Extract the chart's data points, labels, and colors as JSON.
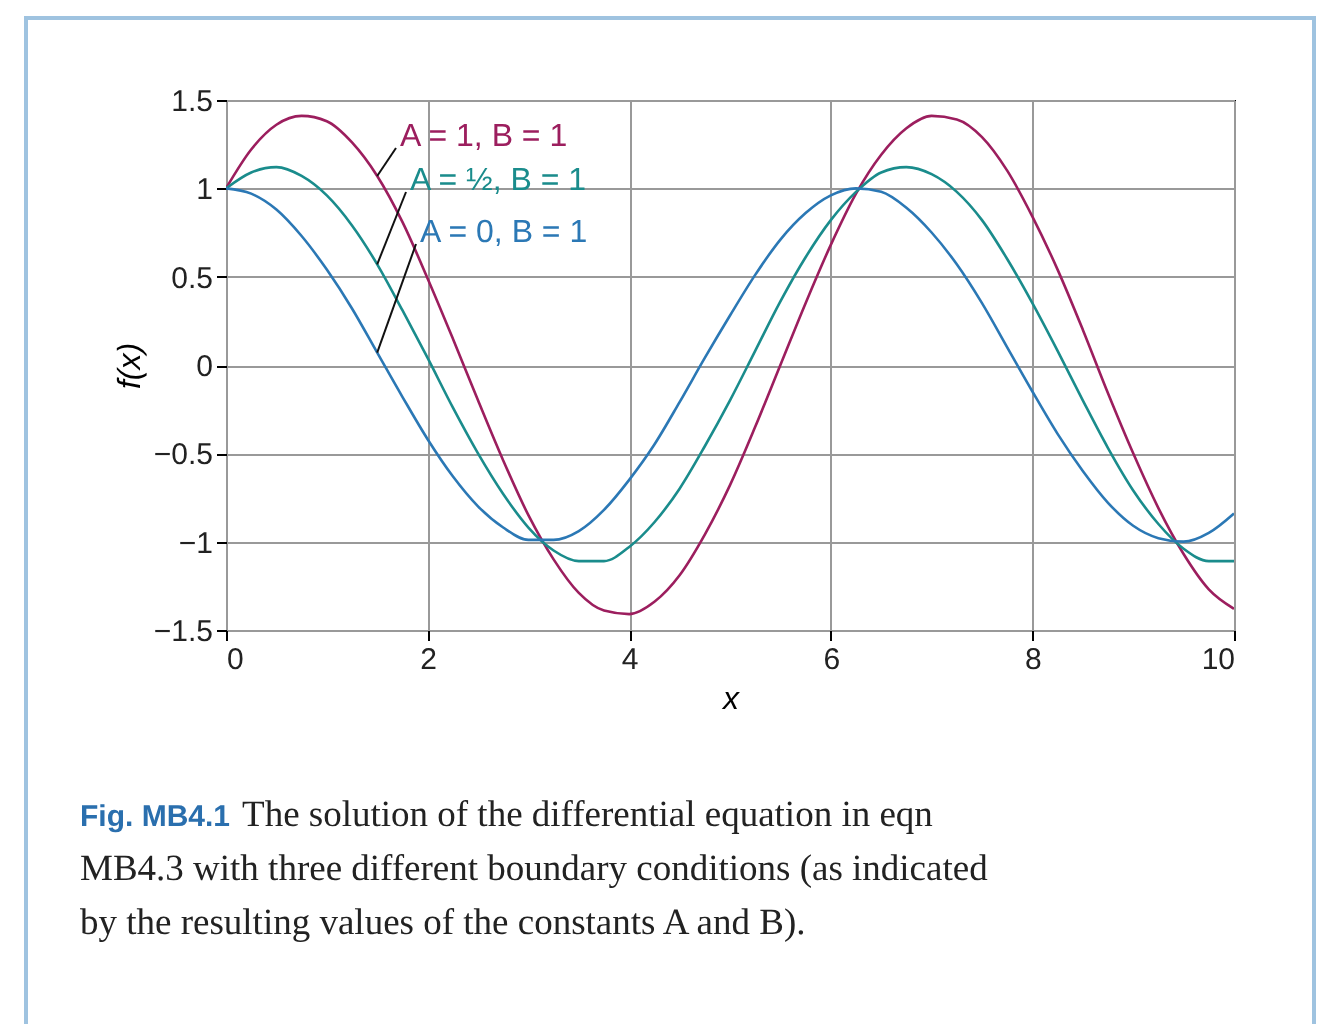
{
  "chart_data": {
    "type": "line",
    "xlabel": "x",
    "ylabel": "f(x)",
    "x": [
      0,
      0.25,
      0.5,
      0.75,
      1,
      1.25,
      1.5,
      1.75,
      2,
      2.25,
      2.5,
      2.75,
      3,
      3.25,
      3.5,
      3.75,
      4,
      4.25,
      4.5,
      4.75,
      5,
      5.25,
      5.5,
      5.75,
      6,
      6.25,
      6.5,
      6.75,
      7,
      7.25,
      7.5,
      7.75,
      8,
      8.25,
      8.5,
      8.75,
      9,
      9.25,
      9.5,
      9.75,
      10
    ],
    "series": [
      {
        "name": "A = 1, B = 1",
        "color": "#9c1e5e",
        "values": [
          1,
          1.22,
          1.36,
          1.41,
          1.38,
          1.26,
          1.07,
          0.81,
          0.49,
          0.15,
          -0.2,
          -0.54,
          -0.85,
          -1.1,
          -1.29,
          -1.39,
          -1.41,
          -1.34,
          -1.19,
          -0.96,
          -0.68,
          -0.35,
          0,
          0.35,
          0.68,
          0.97,
          1.19,
          1.34,
          1.41,
          1.39,
          1.29,
          1.1,
          0.84,
          0.54,
          0.2,
          -0.16,
          -0.5,
          -0.81,
          -1.07,
          -1.27,
          -1.38
        ]
      },
      {
        "name": "A = ½, B = 1",
        "color": "#1a8c8c",
        "values": [
          1,
          1.09,
          1.12,
          1.07,
          0.96,
          0.79,
          0.57,
          0.31,
          0.04,
          -0.24,
          -0.5,
          -0.73,
          -0.92,
          -1.05,
          -1.11,
          -1.11,
          -1.03,
          -0.89,
          -0.7,
          -0.46,
          -0.2,
          0.08,
          0.36,
          0.61,
          0.82,
          0.98,
          1.09,
          1.12,
          1.08,
          0.98,
          0.82,
          0.6,
          0.35,
          0.08,
          -0.2,
          -0.47,
          -0.71,
          -0.9,
          -1.04,
          -1.11,
          -1.11
        ]
      },
      {
        "name": "A = 0, B = 1",
        "color": "#2b78b5",
        "values": [
          1,
          0.97,
          0.88,
          0.73,
          0.54,
          0.32,
          0.07,
          -0.18,
          -0.42,
          -0.63,
          -0.8,
          -0.92,
          -0.99,
          -0.99,
          -0.94,
          -0.82,
          -0.65,
          -0.45,
          -0.21,
          0.04,
          0.28,
          0.51,
          0.71,
          0.86,
          0.96,
          1,
          0.98,
          0.89,
          0.75,
          0.57,
          0.35,
          0.1,
          -0.15,
          -0.39,
          -0.6,
          -0.78,
          -0.91,
          -0.98,
          -1,
          -0.95,
          -0.84
        ]
      }
    ],
    "xlim": [
      0,
      10
    ],
    "xticks": [
      0,
      2,
      4,
      6,
      8,
      10
    ],
    "ylim": [
      -1.5,
      1.5
    ],
    "yticks": [
      {
        "value": -1.5,
        "label": "−1.5"
      },
      {
        "value": -1,
        "label": "−1"
      },
      {
        "value": -0.5,
        "label": "−0.5"
      },
      0,
      0.5,
      1,
      1.5
    ],
    "grid": true,
    "legend": false,
    "marker": "none",
    "line_style": "solid",
    "annotations": [
      "Fig. MB4.1",
      "The solution of the differential equation in eqn MB4.3 with three different boundary conditions (as indicated by the resulting values of the constants A and B)."
    ]
  }
}
